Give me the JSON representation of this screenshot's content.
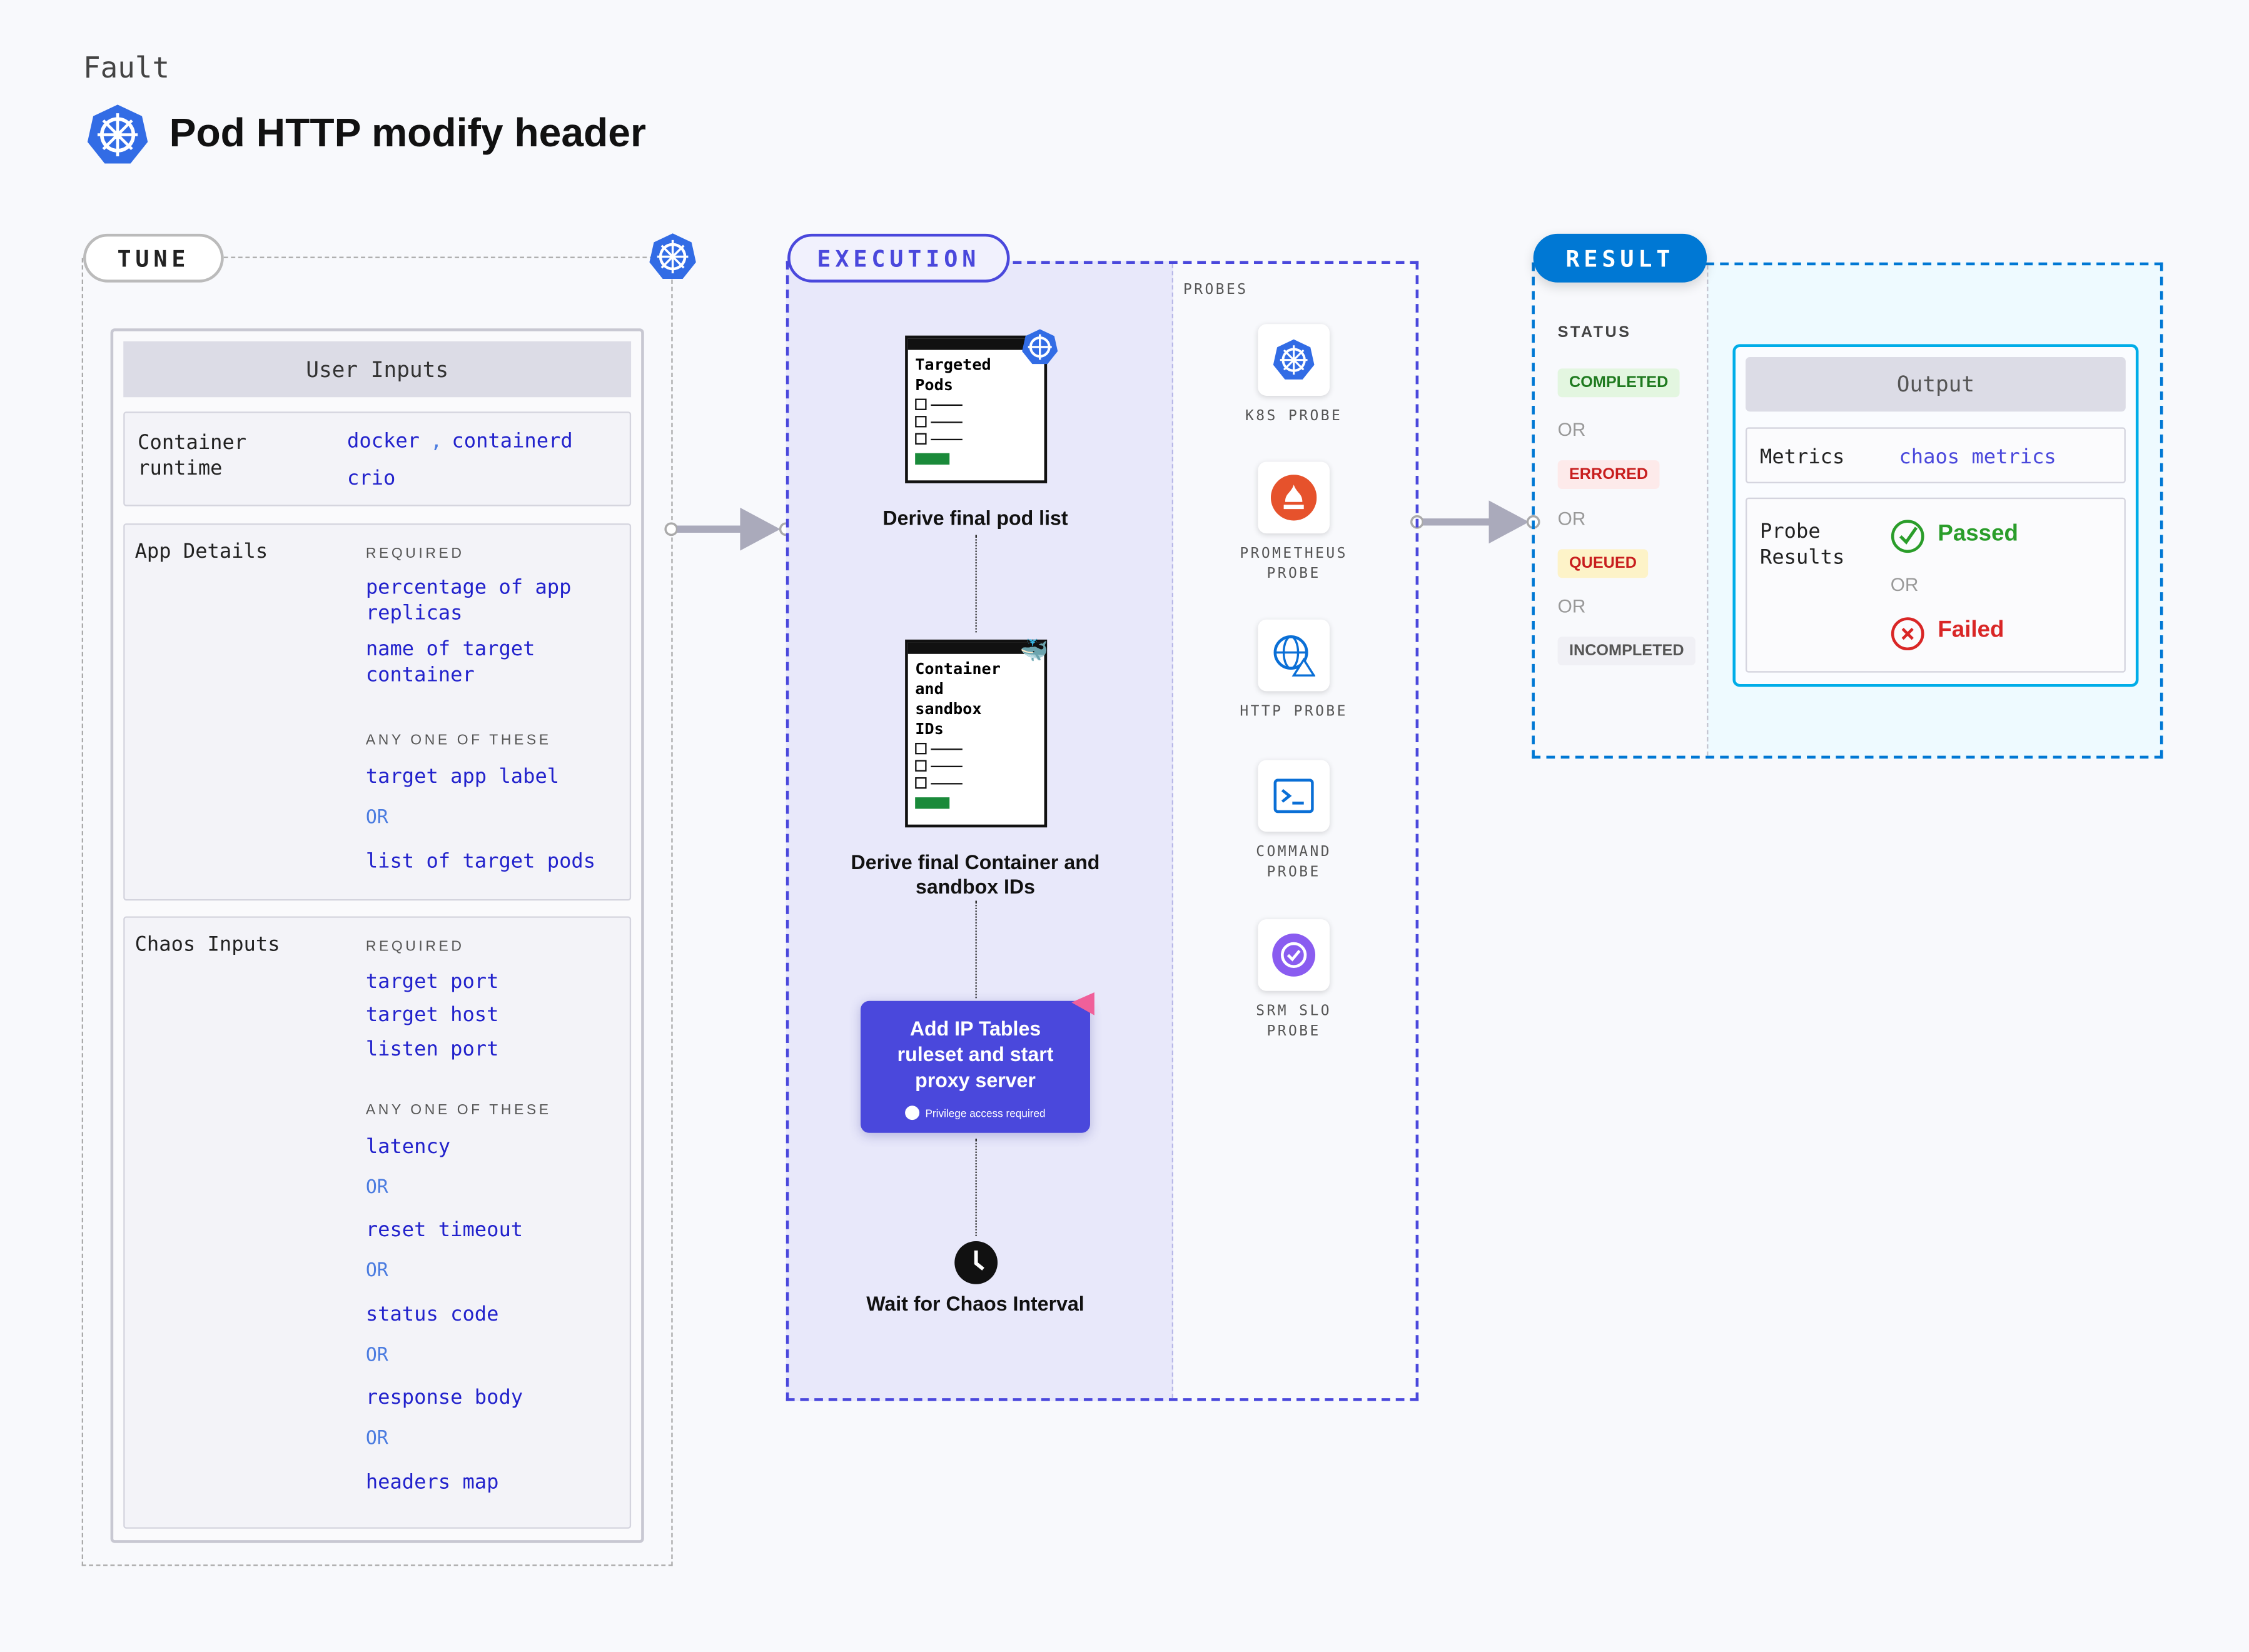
{
  "header": {
    "eyebrow": "Fault",
    "title": "Pod HTTP modify header",
    "icon": "kubernetes-icon"
  },
  "tune": {
    "label": "TUNE",
    "user_inputs": "User Inputs",
    "container_runtime": {
      "label": "Container runtime",
      "values": [
        "docker",
        ",",
        "containerd",
        "crio"
      ]
    },
    "app_details": {
      "label": "App Details",
      "required": "REQUIRED",
      "required_items": [
        "percentage of app replicas",
        "name of target container"
      ],
      "any_one": "ANY ONE OF THESE",
      "options": [
        "target app label",
        "OR",
        "list of target pods"
      ]
    },
    "chaos_inputs": {
      "label": "Chaos Inputs",
      "required": "REQUIRED",
      "required_items": [
        "target port",
        "target host",
        "listen port"
      ],
      "any_one": "ANY ONE OF THESE",
      "options": [
        "latency",
        "OR",
        "reset timeout",
        "OR",
        "status code",
        "OR",
        "response body",
        "OR",
        "headers map"
      ]
    }
  },
  "execution": {
    "label": "EXECUTION",
    "card1": {
      "title": "Targeted Pods"
    },
    "step1": "Derive final pod list",
    "card2": {
      "title": "Container and sandbox IDs"
    },
    "step2": "Derive final Container and sandbox IDs",
    "step3": "Add IP Tables ruleset and start proxy server",
    "privilege": "Privilege access required",
    "step4": "Wait for Chaos Interval",
    "probes_label": "PROBES",
    "probes": [
      "K8S PROBE",
      "PROMETHEUS PROBE",
      "HTTP PROBE",
      "COMMAND PROBE",
      "SRM SLO PROBE"
    ]
  },
  "result": {
    "label": "RESULT",
    "status_label": "STATUS",
    "statuses": [
      "COMPLETED",
      "OR",
      "ERRORED",
      "OR",
      "QUEUED",
      "OR",
      "INCOMPLETED"
    ],
    "output": "Output",
    "metrics_label": "Metrics",
    "metrics_value": "chaos metrics",
    "probe_results_label": "Probe Results",
    "passed": "Passed",
    "or": "OR",
    "failed": "Failed"
  },
  "colors": {
    "execution": "#4a48dc",
    "result": "#0078d4",
    "passed": "#2a9d2a",
    "failed": "#d92626"
  }
}
